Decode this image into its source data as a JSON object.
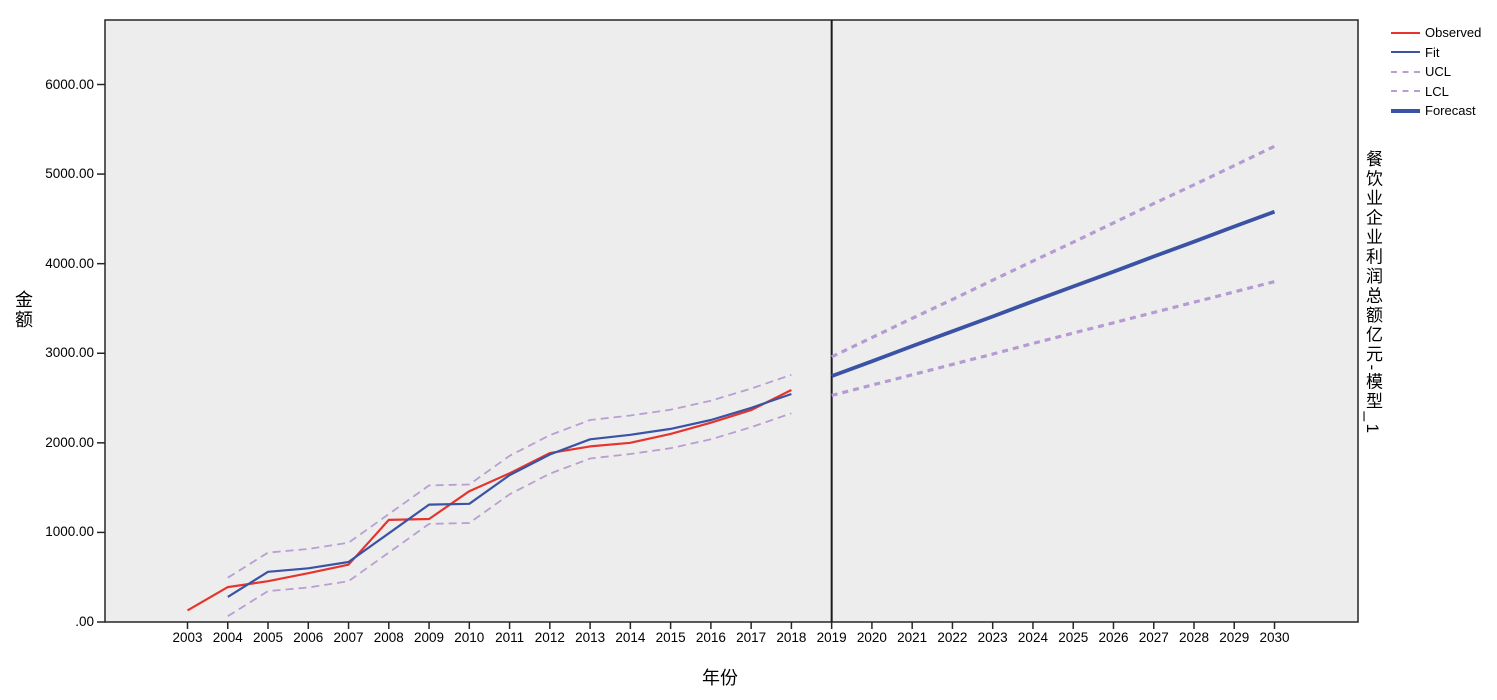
{
  "chart_data": {
    "type": "line",
    "title": "",
    "xlabel": "年份",
    "ylabel": "金额",
    "right_axis_label": "餐饮业企业利润总额亿元-模型_1",
    "x": [
      2003,
      2004,
      2005,
      2006,
      2007,
      2008,
      2009,
      2010,
      2011,
      2012,
      2013,
      2014,
      2015,
      2016,
      2017,
      2018,
      2019,
      2020,
      2021,
      2022,
      2023,
      2024,
      2025,
      2026,
      2027,
      2028,
      2029,
      2030
    ],
    "divider_year": 2019,
    "ylim": [
      0,
      6720
    ],
    "grid": false,
    "plot_bg": "#eeedee",
    "frame_color": "#262626",
    "yticks": [
      {
        "value": 0,
        "label": ".00"
      },
      {
        "value": 1000,
        "label": "1000.00"
      },
      {
        "value": 2000,
        "label": "2000.00"
      },
      {
        "value": 3000,
        "label": "3000.00"
      },
      {
        "value": 4000,
        "label": "4000.00"
      },
      {
        "value": 5000,
        "label": "5000.00"
      },
      {
        "value": 6000,
        "label": "6000.00"
      }
    ],
    "legend": {
      "position": "top-right",
      "items": [
        {
          "label": "Observed",
          "color": "#e5352e",
          "dash": false,
          "width": 2
        },
        {
          "label": "Fit",
          "color": "#3a53a4",
          "dash": false,
          "width": 2
        },
        {
          "label": "UCL",
          "color": "#b89fd1",
          "dash": true,
          "width": 2
        },
        {
          "label": "LCL",
          "color": "#b89fd1",
          "dash": true,
          "width": 2
        },
        {
          "label": "Forecast",
          "color": "#3a53a4",
          "dash": false,
          "width": 4
        }
      ]
    },
    "series": [
      {
        "name": "observed",
        "label": "Observed",
        "color": "#e5352e",
        "width": 2.2,
        "dash": null,
        "start_year": 2003,
        "values": [
          130,
          390,
          455,
          545,
          640,
          1140,
          1150,
          1460,
          1660,
          1885,
          1960,
          2000,
          2100,
          2225,
          2365,
          2590
        ]
      },
      {
        "name": "fit",
        "label": "Fit",
        "color": "#3a53a4",
        "width": 2.2,
        "dash": null,
        "start_year": 2004,
        "values": [
          280,
          560,
          600,
          670,
          990,
          1310,
          1320,
          1640,
          1870,
          2040,
          2090,
          2155,
          2255,
          2390,
          2545
        ]
      },
      {
        "name": "ucl-historical",
        "label": "UCL",
        "color": "#b89fd1",
        "width": 1.8,
        "dash": "8 5",
        "start_year": 2004,
        "values": [
          495,
          775,
          815,
          885,
          1205,
          1525,
          1535,
          1855,
          2085,
          2255,
          2305,
          2370,
          2470,
          2605,
          2760
        ]
      },
      {
        "name": "lcl-historical",
        "label": "LCL",
        "color": "#b89fd1",
        "width": 1.8,
        "dash": "8 5",
        "start_year": 2004,
        "values": [
          65,
          345,
          385,
          455,
          775,
          1095,
          1105,
          1425,
          1655,
          1825,
          1875,
          1940,
          2040,
          2175,
          2330
        ]
      },
      {
        "name": "forecast",
        "label": "Forecast",
        "color": "#3a53a4",
        "width": 3.8,
        "dash": null,
        "start_year": 2019,
        "values": [
          2745,
          2910,
          3080,
          3245,
          3410,
          3580,
          3745,
          3910,
          4080,
          4245,
          4415,
          4580
        ]
      },
      {
        "name": "ucl-forecast",
        "label": "UCL",
        "color": "#b49bd1",
        "width": 3.2,
        "dash": "6 5",
        "start_year": 2019,
        "values": [
          2960,
          3175,
          3390,
          3600,
          3815,
          4030,
          4240,
          4455,
          4670,
          4880,
          5095,
          5310
        ]
      },
      {
        "name": "lcl-forecast",
        "label": "LCL",
        "color": "#b49bd1",
        "width": 3.2,
        "dash": "6 5",
        "start_year": 2019,
        "values": [
          2530,
          2645,
          2760,
          2875,
          2990,
          3110,
          3225,
          3340,
          3455,
          3570,
          3685,
          3800
        ]
      }
    ]
  }
}
